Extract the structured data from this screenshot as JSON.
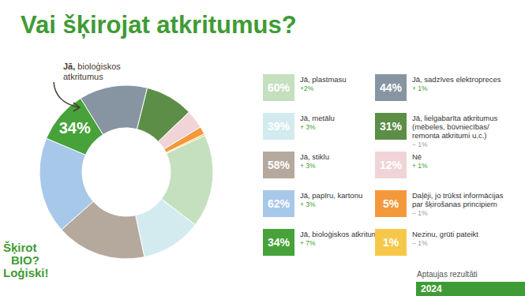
{
  "chart_data": {
    "type": "donut",
    "title": "Vai šķirojat atkritumus?",
    "categories": [
      "Jā, plastmasu",
      "Jā, metālu",
      "Jā, stiklu",
      "Jā, papīru, kartonu",
      "Jā, bioloģiskos atkritumus",
      "Jā, sadzīves elektropreces",
      "Jā, lielgabarīta atkritumus (mēbeles, būvniecības/ remonta atkritumi u.c.)",
      "Nē",
      "Daļēji, jo trūkst informācijas par šķirošanas principiem",
      "Nezinu, grūti pateikt"
    ],
    "values": [
      60,
      39,
      58,
      62,
      34,
      44,
      31,
      12,
      5,
      1
    ],
    "value_labels": [
      "60%",
      "39%",
      "58%",
      "62%",
      "34%",
      "44%",
      "31%",
      "12%",
      "5%",
      "1%"
    ],
    "changes": [
      "+2%",
      "+ 3%",
      "+ 3%",
      "+ 3%",
      "+ 7%",
      "+ 1%",
      "− 1%",
      "+ 1%",
      "− 1%",
      "− 1%"
    ],
    "colors": [
      "#c4e0bf",
      "#d3ebef",
      "#b5a89d",
      "#a8c8ea",
      "#47a23a",
      "#8795a2",
      "#5d8e48",
      "#f1d4d7",
      "#f3993b",
      "#f6c84a"
    ],
    "annotation": "Jā, bioloģiskos atkritumus"
  },
  "logo": [
    "Šķirot",
    "BIO?",
    "Loģiski!"
  ],
  "footer": {
    "text": "Aptaujas rezultāti",
    "year": "2024"
  }
}
